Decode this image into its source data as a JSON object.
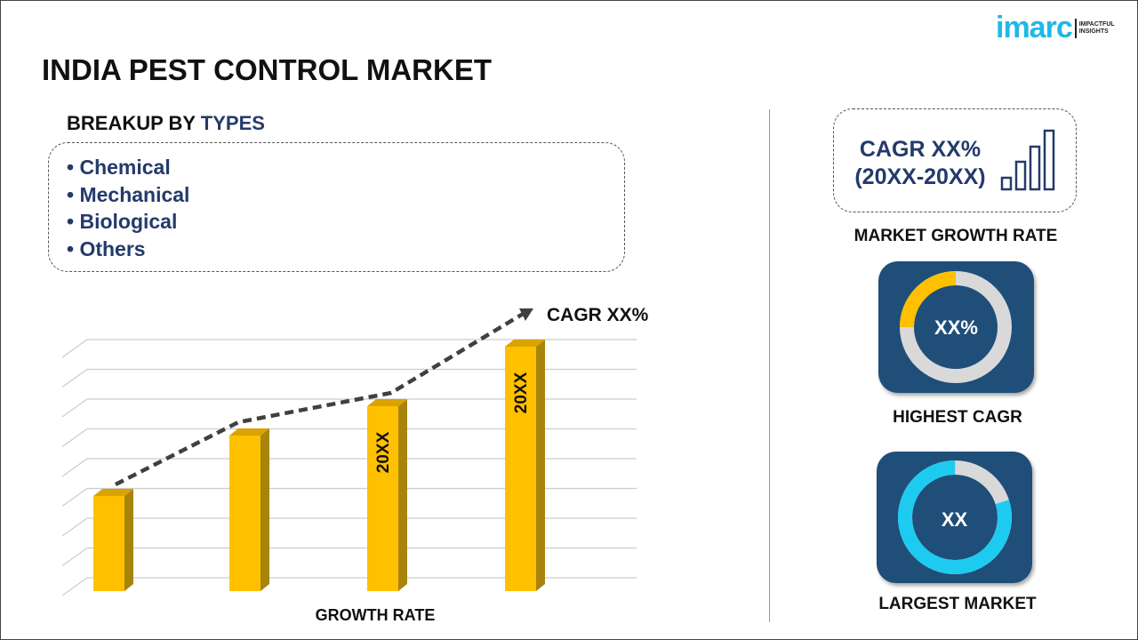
{
  "title": "INDIA PEST CONTROL MARKET",
  "logo": {
    "name": "imarc",
    "tagline_1": "IMPACTFUL",
    "tagline_2": "INSIGHTS"
  },
  "breakup": {
    "prefix": "BREAKUP BY ",
    "highlight": "TYPES",
    "items": [
      "Chemical",
      "Mechanical",
      "Biological",
      "Others"
    ]
  },
  "chart": {
    "cagr_label": "CAGR XX%",
    "xlabel": "GROWTH RATE",
    "bar_labels": [
      "",
      "",
      "20XX",
      "20XX"
    ],
    "bar_color": "#ffc000"
  },
  "growth": {
    "line1": "CAGR XX%",
    "line2": "(20XX-20XX)",
    "caption": "MARKET GROWTH RATE"
  },
  "highest": {
    "value": "XX%",
    "caption": "HIGHEST CAGR",
    "fill_fraction": 0.25,
    "color": "#ffc000"
  },
  "largest": {
    "value": "XX",
    "caption": "LARGEST MARKET",
    "fill_fraction": 0.8,
    "color": "#1ecbf0"
  },
  "colors": {
    "navy": "#243a6b",
    "tile": "#1f4e79",
    "ring_bg": "#d9d9d9"
  }
}
